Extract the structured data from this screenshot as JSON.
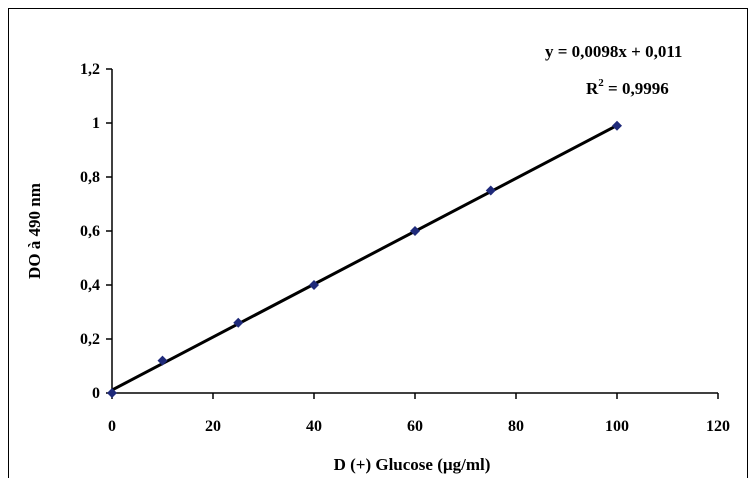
{
  "chart_data": {
    "type": "scatter",
    "xlabel": "D (+) Glucose (µg/ml)",
    "ylabel": "DO à 490 nm",
    "xlim": [
      0,
      120
    ],
    "ylim": [
      0,
      1.2
    ],
    "x_ticks": [
      "0",
      "20",
      "40",
      "60",
      "80",
      "100",
      "120"
    ],
    "y_ticks": [
      "0",
      "0,2",
      "0,4",
      "0,6",
      "0,8",
      "1",
      "1,2"
    ],
    "grid": false,
    "legend": "none",
    "series": [
      {
        "x": [
          0,
          10,
          25,
          40,
          60,
          75,
          100
        ],
        "values": [
          0.0,
          0.12,
          0.26,
          0.4,
          0.6,
          0.75,
          0.99
        ],
        "marker": "diamond",
        "color": "#1f2a7a"
      }
    ],
    "trendline": {
      "type": "linear",
      "slope": 0.0098,
      "intercept": 0.011,
      "x_range": [
        0,
        100
      ],
      "color": "#000000",
      "equation": "y = 0,0098x + 0,011",
      "r2_prefix": "R",
      "r2_exp": "2",
      "r2_value": " = 0,9996"
    }
  }
}
